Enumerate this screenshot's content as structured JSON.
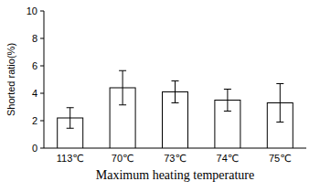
{
  "chart_data": {
    "type": "bar",
    "y_label": "Shorted ratio(%)",
    "x_label": "Maximum heating temperature",
    "categories": [
      "113℃",
      "70℃",
      "73℃",
      "74℃",
      "75℃"
    ],
    "values": [
      2.2,
      4.4,
      4.1,
      3.5,
      3.3
    ],
    "errors": [
      0.75,
      1.25,
      0.8,
      0.8,
      1.4
    ],
    "color": "#ffffff",
    "ylim": [
      0,
      10
    ],
    "yticks": [
      0,
      2,
      4,
      6,
      8,
      10
    ],
    "grid": false
  }
}
